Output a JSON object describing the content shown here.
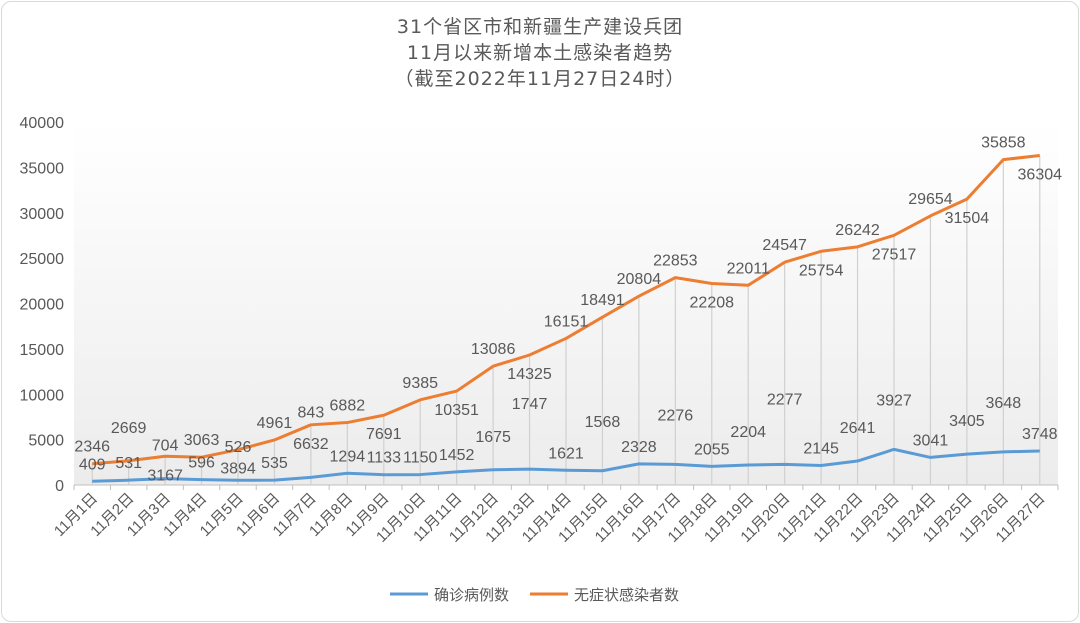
{
  "chart_data": {
    "type": "line",
    "title": [
      "31个省区市和新疆生产建设兵团",
      "11月以来新增本土感染者趋势",
      "（截至2022年11月27日24时）"
    ],
    "xlabel": "",
    "ylabel": "",
    "ylim": [
      0,
      40000
    ],
    "yticks": [
      0,
      5000,
      10000,
      15000,
      20000,
      25000,
      30000,
      35000,
      40000
    ],
    "grid": false,
    "legend": "bottom",
    "categories": [
      "11月1日",
      "11月2日",
      "11月3日",
      "11月4日",
      "11月5日",
      "11月6日",
      "11月7日",
      "11月8日",
      "11月9日",
      "11月10日",
      "11月11日",
      "11月12日",
      "11月13日",
      "11月14日",
      "11月15日",
      "11月16日",
      "11月17日",
      "11月18日",
      "11月19日",
      "11月20日",
      "11月21日",
      "11月22日",
      "11月23日",
      "11月24日",
      "11月25日",
      "11月26日",
      "11月27日"
    ],
    "series": [
      {
        "name": "确诊病例数",
        "color": "#5b9bd5",
        "values": [
          409,
          531,
          704,
          596,
          526,
          535,
          843,
          1294,
          1133,
          1150,
          1452,
          1675,
          1747,
          1621,
          1568,
          2328,
          2276,
          2055,
          2204,
          2277,
          2145,
          2641,
          3927,
          3041,
          3405,
          3648,
          3748
        ]
      },
      {
        "name": "无症状感染者数",
        "color": "#ed7d31",
        "values": [
          2346,
          2669,
          3167,
          3063,
          3894,
          4961,
          6632,
          6882,
          7691,
          9385,
          10351,
          13086,
          14325,
          16151,
          18491,
          20804,
          22853,
          22208,
          22011,
          24547,
          25754,
          26242,
          27517,
          29654,
          31504,
          35858,
          36304
        ]
      }
    ]
  }
}
